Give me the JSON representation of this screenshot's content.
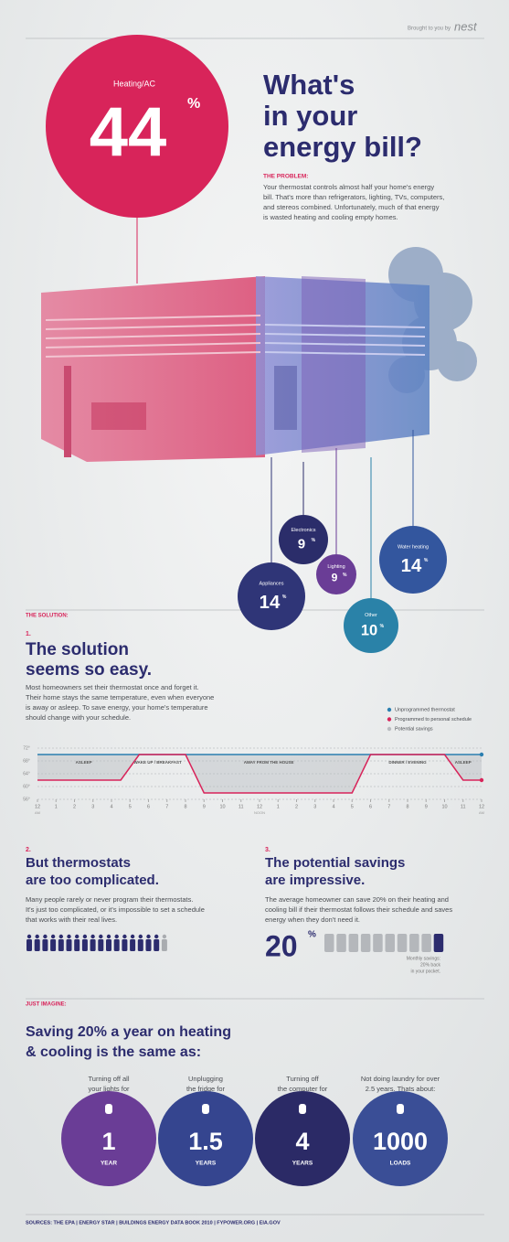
{
  "header": {
    "brought_by": "Brought to you by",
    "brand": "nest"
  },
  "percent_sign": "%",
  "hero": {
    "label": "Heating/AC",
    "value": 44
  },
  "title_lines": [
    "What's",
    "in your",
    "energy bill?"
  ],
  "problem": {
    "heading": "THE PROBLEM:",
    "lines": [
      "Your thermostat controls almost half your home's energy",
      "bill. That's more than refrigerators, lighting, TVs, computers,",
      "and stereos combined. Unfortunately, much of that energy",
      "is wasted heating and cooling empty homes."
    ]
  },
  "breakdown": [
    {
      "label": "Electronics",
      "value": 9
    },
    {
      "label": "Lighting",
      "value": 9
    },
    {
      "label": "Water heating",
      "value": 14
    },
    {
      "label": "Appliances",
      "value": 14
    },
    {
      "label": "Other",
      "value": 10
    }
  ],
  "solution": {
    "heading": "THE SOLUTION:",
    "number": "1.",
    "title_lines": [
      "The solution",
      "seems so easy."
    ],
    "lines": [
      "Most homeowners set their thermostat once and forget it.",
      "Their home stays the same temperature, even when everyone",
      "is away or asleep. To save energy, your home's temperature",
      "should change with your schedule."
    ]
  },
  "schedule_chart": {
    "xlim": [
      0,
      24
    ],
    "ylim": [
      56,
      72
    ],
    "yticks": [
      {
        "value": 72,
        "label": "72°"
      },
      {
        "value": 68,
        "label": "68°"
      },
      {
        "value": 64,
        "label": "64°"
      },
      {
        "value": 60,
        "label": "60°"
      },
      {
        "value": 56,
        "label": "56°"
      }
    ],
    "xticks": [
      {
        "value": 0,
        "label": "12"
      },
      1,
      2,
      3,
      4,
      5,
      6,
      7,
      8,
      9,
      10,
      11,
      {
        "value": 12,
        "label": "12"
      },
      {
        "value": 13,
        "label": "1"
      },
      {
        "value": 14,
        "label": "2"
      },
      {
        "value": 15,
        "label": "3"
      },
      {
        "value": 16,
        "label": "4"
      },
      {
        "value": 17,
        "label": "5"
      },
      {
        "value": 18,
        "label": "6"
      },
      {
        "value": 19,
        "label": "7"
      },
      {
        "value": 20,
        "label": "8"
      },
      {
        "value": 21,
        "label": "9"
      },
      {
        "value": 22,
        "label": "10"
      },
      {
        "value": 23,
        "label": "11"
      },
      {
        "value": 24,
        "label": "12"
      }
    ],
    "xtick_notes": [
      {
        "value": 0,
        "label": "AM"
      },
      {
        "value": 12,
        "label": "NOON"
      },
      {
        "value": 24,
        "label": "AM"
      }
    ],
    "series": [
      {
        "name": "Unprogrammed thermostat",
        "color": "#2b7fb0",
        "x": [
          0,
          24
        ],
        "values": [
          70,
          70
        ]
      },
      {
        "name": "Programmed to personal schedule",
        "color": "#d8245a",
        "x": [
          0,
          4.5,
          5.5,
          8,
          9,
          17,
          18,
          22,
          23,
          24
        ],
        "values": [
          62,
          62,
          70,
          70,
          58,
          58,
          70,
          70,
          62,
          62
        ]
      }
    ],
    "savings_legend": {
      "name": "Potential savings",
      "color": "#b9bcc0"
    },
    "periods": [
      {
        "label": "ASLEEP",
        "from": 0,
        "to": 5
      },
      {
        "label": "WAKE UP / BREAKFAST",
        "from": 5,
        "to": 8
      },
      {
        "label": "AWAY FROM THE HOUSE",
        "from": 8,
        "to": 17
      },
      {
        "label": "DINNER / EVENING",
        "from": 18,
        "to": 22
      },
      {
        "label": "ASLEEP",
        "from": 22,
        "to": 24
      }
    ]
  },
  "complicated": {
    "number": "2.",
    "title_lines": [
      "But thermostats",
      "are too complicated."
    ],
    "lines": [
      "Many people rarely or never program their thermostats.",
      "It's just too complicated, or it's impossible to set a schedule",
      "that works with their real lives."
    ]
  },
  "savings": {
    "number": "3.",
    "title_lines": [
      "The potential savings",
      "are impressive."
    ],
    "lines": [
      "The average homeowner can save 20% on their heating and",
      "cooling bill if their thermostat follows their schedule and saves",
      "energy when they don't need it."
    ],
    "value": 20,
    "note_lines": [
      "Monthly savings:",
      "20% back",
      "in your pocket."
    ]
  },
  "imagine": {
    "heading": "JUST IMAGINE:",
    "title_lines": [
      "Saving 20% a year on heating",
      "& cooling is the same as:"
    ],
    "items": [
      {
        "caption": [
          "Turning off all",
          "your lights for"
        ],
        "value": 1,
        "unit": "YEAR"
      },
      {
        "caption": [
          "Unplugging",
          "the fridge for"
        ],
        "value": 1.5,
        "unit": "YEARS"
      },
      {
        "caption": [
          "Turning off",
          "the computer for"
        ],
        "value": 4,
        "unit": "YEARS"
      },
      {
        "caption": [
          "Not doing laundry for over",
          "2.5 years. Thats about:"
        ],
        "value": 1000,
        "unit": "LOADS"
      }
    ]
  },
  "sources": "SOURCES: THE EPA  |  ENERGY STAR  |  BUILDINGS ENERGY DATA BOOK 2010  |  FYPOWER.ORG  |  EIA.GOV"
}
